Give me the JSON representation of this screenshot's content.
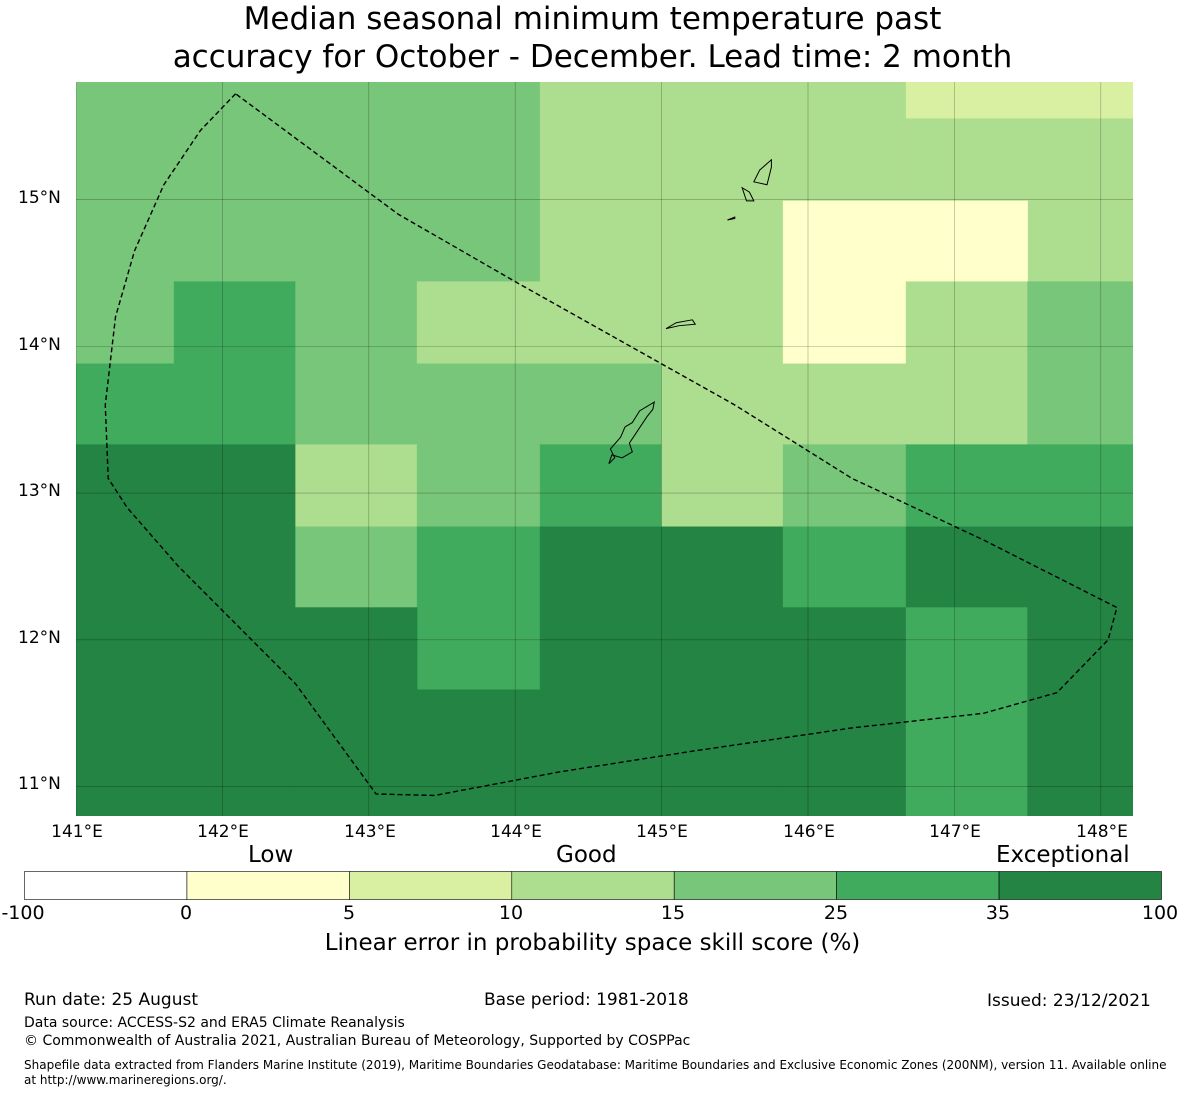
{
  "title_line1": "Median seasonal minimum temperature past",
  "title_line2": "accuracy for October - December. Lead time: 2 month",
  "map": {
    "lon_labels": [
      "141°E",
      "142°E",
      "143°E",
      "144°E",
      "145°E",
      "146°E",
      "147°E",
      "148°E"
    ],
    "lat_labels": [
      "15°N",
      "14°N",
      "13°N",
      "12°N",
      "11°N"
    ],
    "lon_range": [
      141.0,
      148.22
    ],
    "lat_range": [
      10.8,
      15.8
    ],
    "grid_lons": [
      141.67,
      142.5,
      143.33,
      144.17,
      145.0,
      145.83,
      146.67,
      147.5,
      148.22
    ],
    "grid_lats": [
      15.8,
      15.55,
      14.99,
      14.44,
      13.88,
      13.33,
      12.77,
      12.22,
      11.66,
      10.8
    ],
    "cells": [
      {
        "lon": [
          141.0,
          144.17
        ],
        "lat": [
          14.44,
          15.8
        ],
        "color": "#78c679"
      },
      {
        "lon": [
          144.17,
          146.67
        ],
        "lat": [
          14.44,
          15.8
        ],
        "color": "#addd8e"
      },
      {
        "lon": [
          146.67,
          148.22
        ],
        "lat": [
          15.55,
          15.8
        ],
        "color": "#d9f0a3"
      },
      {
        "lon": [
          146.67,
          148.22
        ],
        "lat": [
          14.44,
          15.55
        ],
        "color": "#addd8e"
      },
      {
        "lon": [
          145.83,
          147.5
        ],
        "lat": [
          14.44,
          14.99
        ],
        "color": "#ffffcc"
      },
      {
        "lon": [
          141.0,
          141.67
        ],
        "lat": [
          13.88,
          14.44
        ],
        "color": "#78c679"
      },
      {
        "lon": [
          141.67,
          142.5
        ],
        "lat": [
          13.33,
          14.44
        ],
        "color": "#41ab5d"
      },
      {
        "lon": [
          141.0,
          141.67
        ],
        "lat": [
          13.33,
          13.88
        ],
        "color": "#41ab5d"
      },
      {
        "lon": [
          142.5,
          143.33
        ],
        "lat": [
          13.33,
          14.44
        ],
        "color": "#78c679"
      },
      {
        "lon": [
          143.33,
          145.83
        ],
        "lat": [
          13.88,
          14.44
        ],
        "color": "#addd8e"
      },
      {
        "lon": [
          145.83,
          146.67
        ],
        "lat": [
          13.88,
          14.44
        ],
        "color": "#ffffcc"
      },
      {
        "lon": [
          146.67,
          147.5
        ],
        "lat": [
          13.33,
          14.44
        ],
        "color": "#addd8e"
      },
      {
        "lon": [
          147.5,
          148.22
        ],
        "lat": [
          13.33,
          14.44
        ],
        "color": "#78c679"
      },
      {
        "lon": [
          143.33,
          145.0
        ],
        "lat": [
          13.33,
          13.88
        ],
        "color": "#78c679"
      },
      {
        "lon": [
          145.0,
          146.67
        ],
        "lat": [
          13.33,
          13.88
        ],
        "color": "#addd8e"
      },
      {
        "lon": [
          141.0,
          142.5
        ],
        "lat": [
          10.8,
          13.33
        ],
        "color": "#238443"
      },
      {
        "lon": [
          142.5,
          143.33
        ],
        "lat": [
          12.77,
          13.33
        ],
        "color": "#addd8e"
      },
      {
        "lon": [
          143.33,
          144.17
        ],
        "lat": [
          12.77,
          13.33
        ],
        "color": "#78c679"
      },
      {
        "lon": [
          144.17,
          145.0
        ],
        "lat": [
          12.77,
          13.33
        ],
        "color": "#41ab5d"
      },
      {
        "lon": [
          145.0,
          145.83
        ],
        "lat": [
          12.77,
          13.33
        ],
        "color": "#addd8e"
      },
      {
        "lon": [
          145.83,
          146.67
        ],
        "lat": [
          12.77,
          13.33
        ],
        "color": "#78c679"
      },
      {
        "lon": [
          146.67,
          148.22
        ],
        "lat": [
          12.77,
          13.33
        ],
        "color": "#41ab5d"
      },
      {
        "lon": [
          142.5,
          143.33
        ],
        "lat": [
          12.22,
          12.77
        ],
        "color": "#78c679"
      },
      {
        "lon": [
          143.33,
          144.17
        ],
        "lat": [
          11.66,
          12.77
        ],
        "color": "#41ab5d"
      },
      {
        "lon": [
          144.17,
          145.83
        ],
        "lat": [
          10.8,
          12.77
        ],
        "color": "#238443"
      },
      {
        "lon": [
          145.83,
          146.67
        ],
        "lat": [
          12.22,
          12.77
        ],
        "color": "#41ab5d"
      },
      {
        "lon": [
          146.67,
          148.22
        ],
        "lat": [
          12.22,
          12.77
        ],
        "color": "#238443"
      },
      {
        "lon": [
          142.5,
          143.33
        ],
        "lat": [
          10.8,
          12.22
        ],
        "color": "#238443"
      },
      {
        "lon": [
          143.33,
          144.17
        ],
        "lat": [
          10.8,
          11.66
        ],
        "color": "#238443"
      },
      {
        "lon": [
          145.83,
          146.67
        ],
        "lat": [
          10.8,
          12.22
        ],
        "color": "#238443"
      },
      {
        "lon": [
          146.67,
          147.5
        ],
        "lat": [
          10.8,
          12.22
        ],
        "color": "#41ab5d"
      },
      {
        "lon": [
          147.5,
          148.22
        ],
        "lat": [
          10.8,
          12.22
        ],
        "color": "#238443"
      }
    ],
    "eez_boundary": [
      [
        142.09,
        15.72
      ],
      [
        141.85,
        15.47
      ],
      [
        141.6,
        15.1
      ],
      [
        141.4,
        14.65
      ],
      [
        141.27,
        14.2
      ],
      [
        141.2,
        13.6
      ],
      [
        141.22,
        13.1
      ],
      [
        141.35,
        12.9
      ],
      [
        141.7,
        12.5
      ],
      [
        142.5,
        11.7
      ],
      [
        143.05,
        10.95
      ],
      [
        143.45,
        10.94
      ],
      [
        144.3,
        11.1
      ],
      [
        145.2,
        11.24
      ],
      [
        146.3,
        11.4
      ],
      [
        147.2,
        11.5
      ],
      [
        147.7,
        11.64
      ],
      [
        148.05,
        12.0
      ],
      [
        148.11,
        12.22
      ],
      [
        147.2,
        12.68
      ],
      [
        146.3,
        13.1
      ],
      [
        145.5,
        13.6
      ],
      [
        145.0,
        13.88
      ],
      [
        144.0,
        14.44
      ],
      [
        143.2,
        14.9
      ],
      [
        142.09,
        15.72
      ]
    ],
    "islands": [
      [
        [
          144.95,
          13.62
        ],
        [
          144.85,
          13.56
        ],
        [
          144.8,
          13.48
        ],
        [
          144.75,
          13.45
        ],
        [
          144.72,
          13.38
        ],
        [
          144.65,
          13.3
        ],
        [
          144.68,
          13.24
        ],
        [
          144.64,
          13.2
        ],
        [
          144.66,
          13.26
        ],
        [
          144.73,
          13.24
        ],
        [
          144.8,
          13.28
        ],
        [
          144.78,
          13.34
        ],
        [
          144.9,
          13.52
        ],
        [
          144.94,
          13.57
        ],
        [
          144.95,
          13.62
        ]
      ],
      [
        [
          145.75,
          15.27
        ],
        [
          145.67,
          15.2
        ],
        [
          145.63,
          15.12
        ],
        [
          145.72,
          15.1
        ],
        [
          145.75,
          15.22
        ],
        [
          145.75,
          15.27
        ]
      ],
      [
        [
          145.55,
          15.08
        ],
        [
          145.58,
          14.99
        ],
        [
          145.63,
          14.99
        ],
        [
          145.6,
          15.05
        ],
        [
          145.55,
          15.08
        ]
      ],
      [
        [
          145.21,
          14.18
        ],
        [
          145.1,
          14.16
        ],
        [
          145.03,
          14.12
        ],
        [
          145.12,
          14.14
        ],
        [
          145.23,
          14.15
        ],
        [
          145.21,
          14.18
        ]
      ],
      [
        [
          145.5,
          14.88
        ],
        [
          145.45,
          14.86
        ],
        [
          145.5,
          14.87
        ],
        [
          145.5,
          14.88
        ]
      ]
    ]
  },
  "colorbar": {
    "categories": [
      "Low",
      "Good",
      "Exceptional"
    ],
    "ticks": [
      "-100",
      "0",
      "5",
      "10",
      "15",
      "25",
      "35",
      "100"
    ],
    "colors": [
      "#ffffff",
      "#ffffcc",
      "#d9f0a3",
      "#addd8e",
      "#78c679",
      "#41ab5d",
      "#238443"
    ],
    "label": "Linear error in probability space skill score (%)"
  },
  "footer": {
    "run_date": "Run date: 25 August",
    "base_period": "Base period: 1981-2018",
    "issued": "Issued: 23/12/2021",
    "data_source": "Data source: ACCESS-S2 and ERA5 Climate Reanalysis",
    "copyright": "© Commonwealth of Australia 2021, Australian Bureau of Meteorology, Supported by COSPPac",
    "shapefile_line1": "Shapefile data extracted from Flanders Marine Institute (2019), Maritime Boundaries Geodatabase: Maritime Boundaries and Exclusive Economic Zones (200NM), version 11. Available online",
    "shapefile_line2": "at http://www.marineregions.org/."
  }
}
